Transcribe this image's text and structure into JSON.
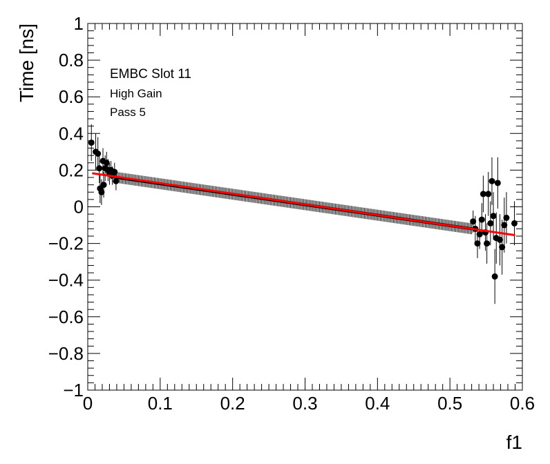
{
  "chart_data": {
    "type": "scatter",
    "xlabel": "f1",
    "ylabel": "Time [ns]",
    "xlim": [
      0,
      0.6
    ],
    "ylim": [
      -1,
      1
    ],
    "x_ticks": [
      "0",
      "0.1",
      "0.2",
      "0.3",
      "0.4",
      "0.5",
      "0.6"
    ],
    "y_ticks": [
      "−1",
      "−0.8",
      "−0.6",
      "−0.4",
      "−0.2",
      "0",
      "0.2",
      "0.4",
      "0.6",
      "0.8",
      "1"
    ],
    "annotations": [
      "EMBC Slot 11",
      "High Gain",
      "Pass 5"
    ],
    "grid": false,
    "fit_line": {
      "color": "#ff0000",
      "x0": 0.006,
      "y0": 0.183,
      "x1": 0.59,
      "y1": -0.155
    },
    "marker_color": "#000000",
    "body": {
      "x_start": 0.04,
      "x_end": 0.53,
      "step": 0.002,
      "y_start": 0.16,
      "y_end": -0.12,
      "err": 0.03
    },
    "scatter_points": [
      {
        "x": 0.005,
        "y": 0.35,
        "err": 0.1
      },
      {
        "x": 0.011,
        "y": 0.3,
        "err": 0.1
      },
      {
        "x": 0.014,
        "y": 0.29,
        "err": 0.09
      },
      {
        "x": 0.016,
        "y": 0.21,
        "err": 0.08
      },
      {
        "x": 0.017,
        "y": 0.1,
        "err": 0.08
      },
      {
        "x": 0.019,
        "y": 0.08,
        "err": 0.07
      },
      {
        "x": 0.021,
        "y": 0.25,
        "err": 0.07
      },
      {
        "x": 0.022,
        "y": 0.12,
        "err": 0.07
      },
      {
        "x": 0.024,
        "y": 0.21,
        "err": 0.07
      },
      {
        "x": 0.026,
        "y": 0.24,
        "err": 0.06
      },
      {
        "x": 0.028,
        "y": 0.2,
        "err": 0.06
      },
      {
        "x": 0.03,
        "y": 0.18,
        "err": 0.06
      },
      {
        "x": 0.032,
        "y": 0.2,
        "err": 0.05
      },
      {
        "x": 0.034,
        "y": 0.17,
        "err": 0.05
      },
      {
        "x": 0.037,
        "y": 0.19,
        "err": 0.05
      },
      {
        "x": 0.039,
        "y": 0.14,
        "err": 0.05
      },
      {
        "x": 0.532,
        "y": -0.08,
        "err": 0.06
      },
      {
        "x": 0.535,
        "y": -0.12,
        "err": 0.07
      },
      {
        "x": 0.538,
        "y": -0.2,
        "err": 0.08
      },
      {
        "x": 0.541,
        "y": -0.15,
        "err": 0.08
      },
      {
        "x": 0.544,
        "y": -0.07,
        "err": 0.09
      },
      {
        "x": 0.546,
        "y": 0.07,
        "err": 0.1
      },
      {
        "x": 0.549,
        "y": -0.14,
        "err": 0.1
      },
      {
        "x": 0.551,
        "y": -0.2,
        "err": 0.11
      },
      {
        "x": 0.553,
        "y": 0.07,
        "err": 0.12
      },
      {
        "x": 0.556,
        "y": -0.09,
        "err": 0.12
      },
      {
        "x": 0.558,
        "y": 0.14,
        "err": 0.13
      },
      {
        "x": 0.56,
        "y": -0.05,
        "err": 0.13
      },
      {
        "x": 0.562,
        "y": -0.38,
        "err": 0.15
      },
      {
        "x": 0.564,
        "y": -0.17,
        "err": 0.14
      },
      {
        "x": 0.566,
        "y": 0.13,
        "err": 0.14
      },
      {
        "x": 0.569,
        "y": -0.18,
        "err": 0.14
      },
      {
        "x": 0.572,
        "y": -0.22,
        "err": 0.15
      },
      {
        "x": 0.575,
        "y": -0.1,
        "err": 0.15
      },
      {
        "x": 0.578,
        "y": -0.06,
        "err": 0.14
      },
      {
        "x": 0.589,
        "y": -0.09,
        "err": 0.12
      }
    ]
  }
}
